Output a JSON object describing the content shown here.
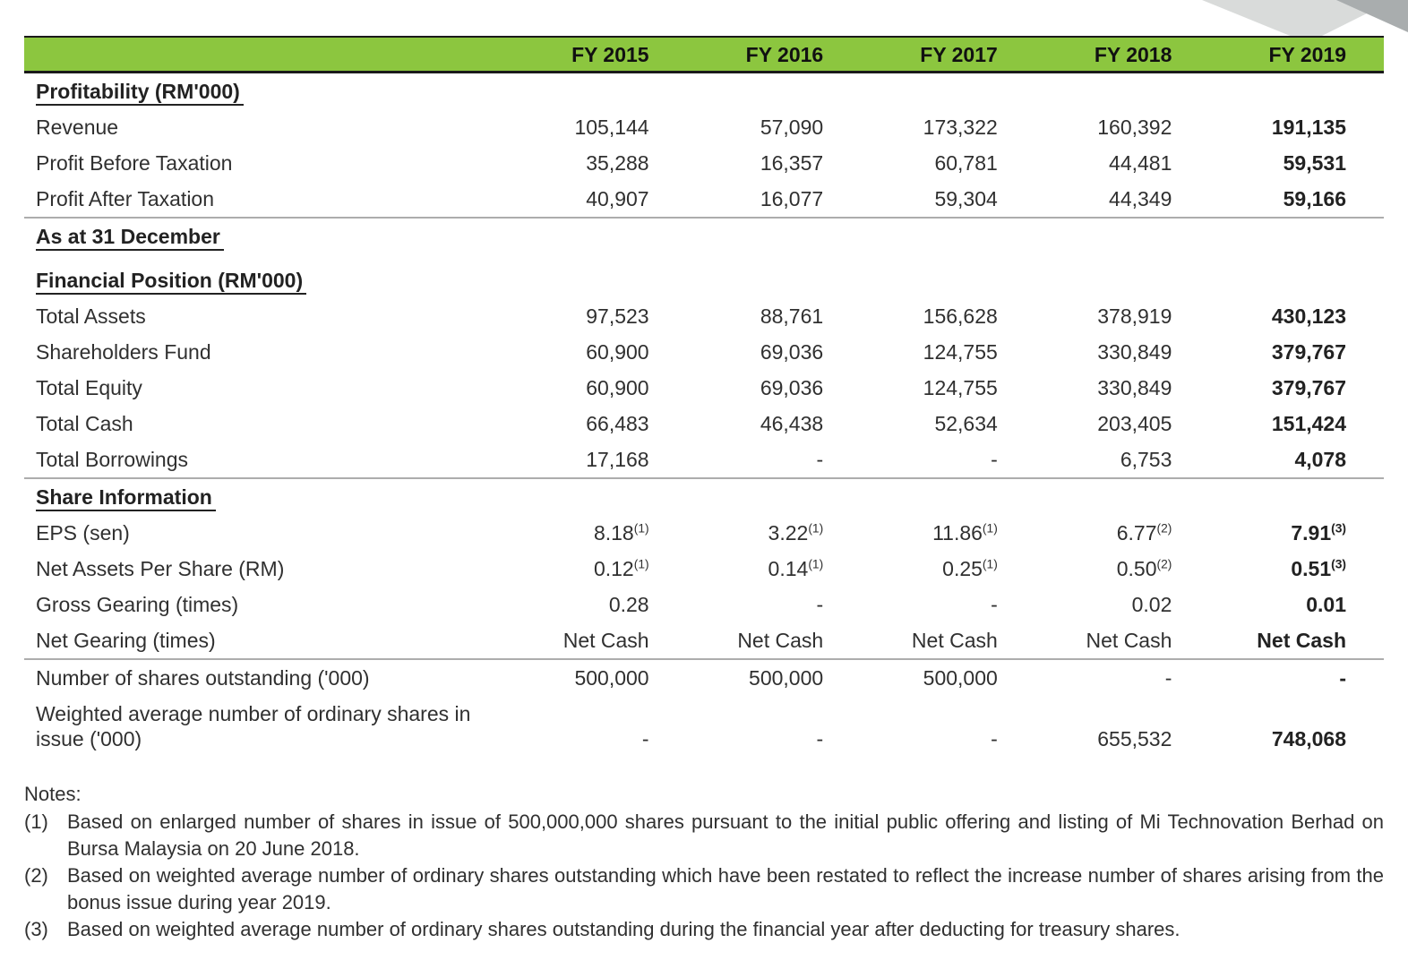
{
  "colors": {
    "header_green": "#8CC63F",
    "rule_gray": "#adadad",
    "decor_light": "#d9dbda",
    "decor_dark": "#a9adae"
  },
  "table": {
    "header": {
      "labels": [
        "FY 2015",
        "FY 2016",
        "FY 2017",
        "FY 2018",
        "FY 2019"
      ]
    },
    "rows": [
      {
        "type": "section",
        "label": "Profitability (RM'000)"
      },
      {
        "type": "data",
        "label": "Revenue",
        "values": [
          "105,144",
          "57,090",
          "173,322",
          "160,392",
          "191,135"
        ]
      },
      {
        "type": "data",
        "label": "Profit Before Taxation",
        "values": [
          "35,288",
          "16,357",
          "60,781",
          "44,481",
          "59,531"
        ]
      },
      {
        "type": "data",
        "label": "Profit After Taxation",
        "values": [
          "40,907",
          "16,077",
          "59,304",
          "44,349",
          "59,166"
        ],
        "rule_below": true
      },
      {
        "type": "section",
        "label": "As at 31 December"
      },
      {
        "type": "section",
        "label": "Financial Position (RM'000)",
        "gap_above": true
      },
      {
        "type": "data",
        "label": "Total Assets",
        "values": [
          "97,523",
          "88,761",
          "156,628",
          "378,919",
          "430,123"
        ]
      },
      {
        "type": "data",
        "label": "Shareholders Fund",
        "values": [
          "60,900",
          "69,036",
          "124,755",
          "330,849",
          "379,767"
        ]
      },
      {
        "type": "data",
        "label": "Total Equity",
        "values": [
          "60,900",
          "69,036",
          "124,755",
          "330,849",
          "379,767"
        ]
      },
      {
        "type": "data",
        "label": "Total Cash",
        "values": [
          "66,483",
          "46,438",
          "52,634",
          "203,405",
          "151,424"
        ]
      },
      {
        "type": "data",
        "label": "Total Borrowings",
        "values": [
          "17,168",
          "-",
          "-",
          "6,753",
          "4,078"
        ],
        "rule_below": true
      },
      {
        "type": "section",
        "label": "Share Information"
      },
      {
        "type": "data",
        "label": "EPS (sen)",
        "values": [
          {
            "v": "8.18",
            "sup": "(1)"
          },
          {
            "v": "3.22",
            "sup": "(1)"
          },
          {
            "v": "11.86",
            "sup": "(1)"
          },
          {
            "v": "6.77",
            "sup": "(2)"
          },
          {
            "v": "7.91",
            "sup": "(3)"
          }
        ]
      },
      {
        "type": "data",
        "label": "Net Assets Per Share (RM)",
        "values": [
          {
            "v": "0.12",
            "sup": "(1)"
          },
          {
            "v": "0.14",
            "sup": "(1)"
          },
          {
            "v": "0.25",
            "sup": "(1)"
          },
          {
            "v": "0.50",
            "sup": "(2)"
          },
          {
            "v": "0.51",
            "sup": "(3)"
          }
        ]
      },
      {
        "type": "data",
        "label": "Gross Gearing (times)",
        "values": [
          "0.28",
          "-",
          "-",
          "0.02",
          "0.01"
        ]
      },
      {
        "type": "data",
        "label": "Net Gearing (times)",
        "values": [
          "Net Cash",
          "Net Cash",
          "Net Cash",
          "Net Cash",
          "Net Cash"
        ],
        "rule_below": true
      },
      {
        "type": "data",
        "label": "Number of shares outstanding ('000)",
        "values": [
          "500,000",
          "500,000",
          "500,000",
          "-",
          "-"
        ]
      },
      {
        "type": "data",
        "label": "Weighted average number of ordinary shares in issue ('000)",
        "values": [
          "-",
          "-",
          "-",
          "655,532",
          "748,068"
        ],
        "wrap": true
      }
    ]
  },
  "notes": {
    "heading": "Notes:",
    "items": [
      {
        "marker": "(1)",
        "text": "Based on enlarged number of shares in issue of 500,000,000 shares pursuant to the initial public offering and listing of Mi Technovation Berhad on Bursa Malaysia on 20 June 2018."
      },
      {
        "marker": "(2)",
        "text": "Based on weighted average number of ordinary shares outstanding which have been restated to reflect the increase number of shares arising from the bonus issue during year 2019."
      },
      {
        "marker": "(3)",
        "text": "Based on weighted average number of ordinary shares outstanding during the financial year after deducting for treasury shares."
      }
    ]
  }
}
